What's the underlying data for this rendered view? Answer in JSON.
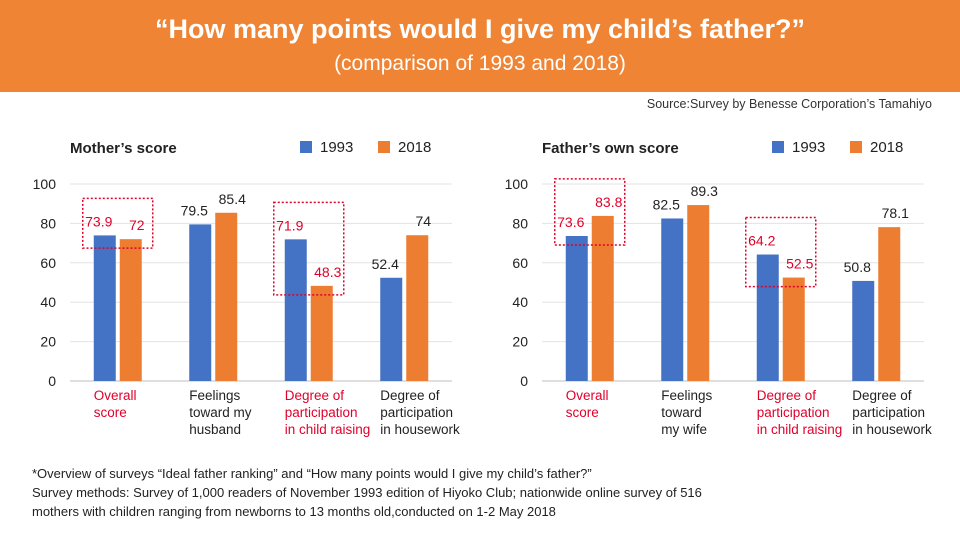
{
  "header": {
    "title": "“How many points would I give my child’s father?”",
    "subtitle": "(comparison of 1993 and 2018)"
  },
  "source": "Source:Survey by Benesse Corporation’s Tamahiyo",
  "colors": {
    "banner": "#ee8434",
    "s1993": "#4472c4",
    "s2018": "#ed7d31",
    "highlight": "#e0002a"
  },
  "chart_data": [
    {
      "type": "bar",
      "title": "Mother’s score",
      "categories": [
        [
          "Overall",
          "score"
        ],
        [
          "Feelings",
          "toward my",
          "husband"
        ],
        [
          "Degree of",
          "participation",
          "in child raising"
        ],
        [
          "Degree of",
          "participation",
          "in housework"
        ]
      ],
      "highlighted": [
        0,
        2
      ],
      "series": [
        {
          "name": "1993",
          "values": [
            73.9,
            79.5,
            71.9,
            52.4
          ]
        },
        {
          "name": "2018",
          "values": [
            72,
            85.4,
            48.3,
            74
          ]
        }
      ],
      "ylim": [
        0,
        100
      ],
      "yticks": [
        0,
        20,
        40,
        60,
        80,
        100
      ],
      "grid": true,
      "legend": "top-right"
    },
    {
      "type": "bar",
      "title": "Father’s own score",
      "categories": [
        [
          "Overall",
          "score"
        ],
        [
          "Feelings",
          "toward",
          "my wife"
        ],
        [
          "Degree of",
          "participation",
          "in child raising"
        ],
        [
          "Degree of",
          "participation",
          "in housework"
        ]
      ],
      "highlighted": [
        0,
        2
      ],
      "series": [
        {
          "name": "1993",
          "values": [
            73.6,
            82.5,
            64.2,
            50.8
          ]
        },
        {
          "name": "2018",
          "values": [
            83.8,
            89.3,
            52.5,
            78.1
          ]
        }
      ],
      "ylim": [
        0,
        100
      ],
      "yticks": [
        0,
        20,
        40,
        60,
        80,
        100
      ],
      "grid": true,
      "legend": "top-right"
    }
  ],
  "notes": [
    "*Overview of surveys “Ideal father ranking” and “How many points would I give my child’s father?”",
    "Survey methods: Survey of 1,000 readers of November 1993 edition of Hiyoko Club; nationwide online survey of 516",
    "mothers with children ranging from newborns to 13 months old,conducted on 1-2 May 2018"
  ]
}
